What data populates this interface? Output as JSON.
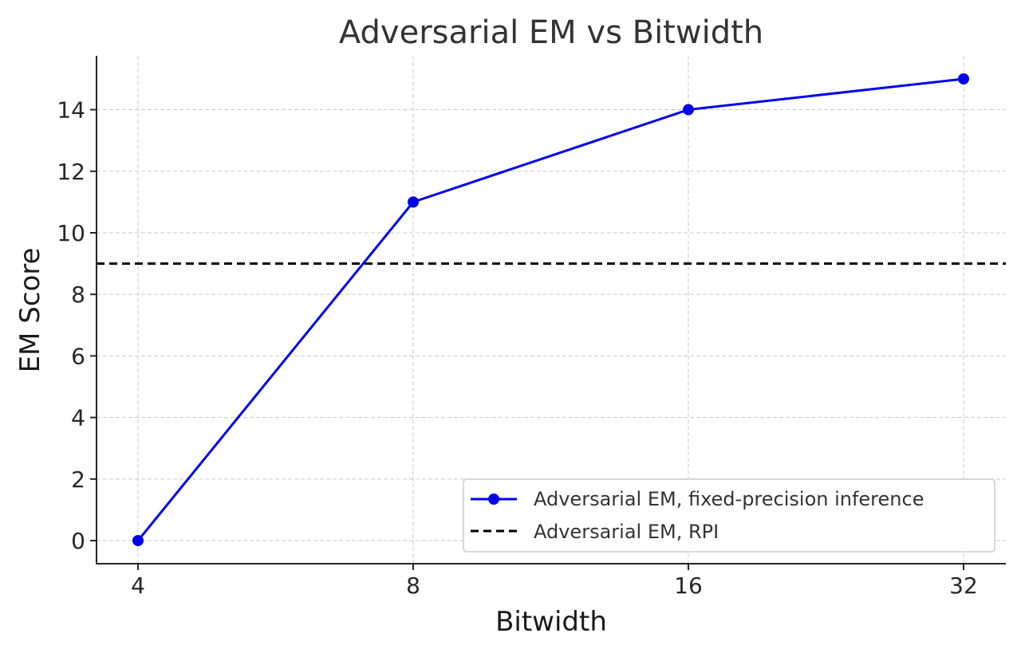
{
  "chart_data": {
    "type": "line",
    "title": "Adversarial EM vs Bitwidth",
    "xlabel": "Bitwidth",
    "ylabel": "EM Score",
    "x": [
      4,
      8,
      16,
      32
    ],
    "x_tick_labels": [
      "4",
      "8",
      "16",
      "32"
    ],
    "x_scale": "log2",
    "y_ticks": [
      0,
      2,
      4,
      6,
      8,
      10,
      12,
      14
    ],
    "y_tick_labels": [
      "0",
      "2",
      "4",
      "6",
      "8",
      "10",
      "12",
      "14"
    ],
    "ylim": [
      -0.75,
      15.75
    ],
    "grid": true,
    "legend_position": "lower-right",
    "series": [
      {
        "name": "Adversarial EM, fixed-precision inference",
        "values": [
          0,
          11,
          14,
          15
        ],
        "color": "#0000ee",
        "style": "solid-with-markers"
      }
    ],
    "reference_lines": [
      {
        "name": "Adversarial EM, RPI",
        "y": 9,
        "color": "#000000",
        "style": "dashed"
      }
    ]
  }
}
